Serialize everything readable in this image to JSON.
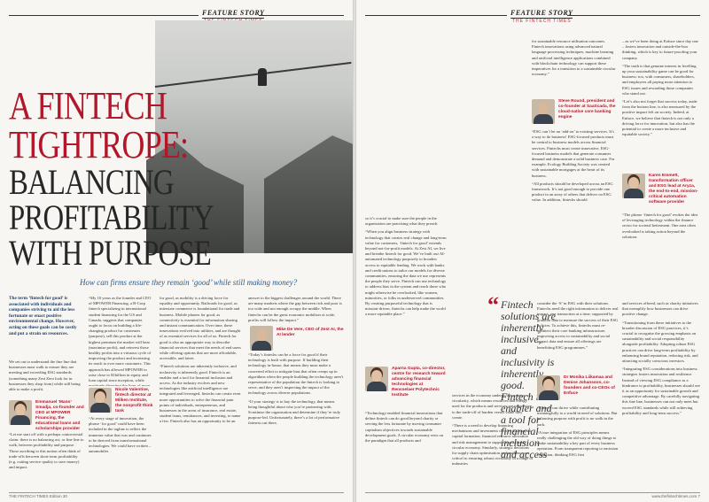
{
  "left": {
    "tab": {
      "label": "FEATURE STORY",
      "sub": "THE FINTECH TIMES"
    },
    "headline": [
      "A FINTECH",
      "TIGHTROPE:",
      "BALANCING",
      "PROFITABILITY",
      "WITH PURPOSE"
    ],
    "standfirst": "How can firms ensure they remain ‘good’ while still making money?",
    "intro": "The term ‘fintech for good’ is associated with individuals and companies striving to aid the less fortunate or enact positive environmental change. However, acting on these goals can be costly and put a strain on resources.",
    "col1": [
      "We set out to understand the fine line that businesses must walk to ensure they are meeting and exceeding ESG standards (something many Zest Zero look for in businesses they shop from) while still being able to make a profit."
    ],
    "spk1": "Emmanuel ‘Mano’ Smadja, co-founder and CEO at MPOWER Financing, the educational loans and scholarships provider",
    "col1b": [
      "“Let me start off with a perhaps controversial claim: there is no balancing act, or fine line to walk, between profitability and purpose. Those ascribing to this notion often think of trade-offs between short-term profitability (e.g. cutting service quality to save money) and impact."
    ],
    "col2": [
      "“My 10 years as the founder and CEO of MPOWER Financing, a B-Corp fintech specializing in international student financing for the US and Canada, suggests that companies ought to focus on building a life-changing product for customers (purpose), sell this product at the highest premium the market will bear (maximise profit), and reinvest those healthy profits into a virtuous cycle of improving the product and increasing its reach to ever more customers. This approach has allowed MPOWER to raise close to $1billion in equity and loan capital since inception, while positively distorting the lives of more than 10,000 students this year alone.”"
    ],
    "spk2": "Nicole Valentine, fintech director at Milken Institute, the nonprofit think tank",
    "col2b": [
      "“At every stage of innovation, the phrase ‘for good’ could have been included in the tagline to reflect the immense value that was and continues to be derived from transformational technologies. We could have written – automobiles"
    ],
    "col3": [
      "for good, as mobility is a driving force for equality and opportunity. Railroads for good, as interstate commerce is foundational for trade and business. Mobile phones for good, as connectivity is essential for information sharing and instant communication. Over time, these innovations evolved into utilities, and are thought of as essential services for all of us. Fintech for good is also an appropriate way to describe financial services that meet the needs of end users while offering options that are more affordable, accessible, and fairer.",
      "“Fintech solutions are inherently inclusive, and inclusivity is inherently good. Fintech is an enabler and a tool for financial inclusion and access. As the industry evolves and new technologies like artificial intelligence are integrated and leveraged, fintechs can create even more opportunities to solve the financial pain points of individuals, entrepreneurs, and businesses in the areas of insurance, real estate, student loans, remittances, and investing, to name a few. Fintech also has an opportunity to be an"
    ],
    "col4": [
      "answer to the biggest challenges around the world. There are many markets where the gap between rich and poor is too wide and not enough occupy the middle. When fintechs can be the great economic mobiliser at scale, profits will follow the impact.”"
    ],
    "spk3": "Mike De Vere, CEO of Zest AI, the AI lender",
    "col4b": [
      "“Today’s fintechs can be a force for good if their technology is built with purpose. If building their technology in-house, that means they must make a concerted effort to mitigate bias that often creeps up in algorithms when the people building the technology aren’t representative of the population the fintech is looking to serve, and they aren’t inspecting the impact of the technology across diverse populations.",
      "“If your strategy is to buy the technology, that means being thoughtful about who you’re partnering with. Scrutinise the organisation and determine if they’re truly purpose-led. Unfortunately, there’s a lot of performative fairness out there,"
    ],
    "footer": "THE FINTECH TIMES    Edition 30"
  },
  "right": {
    "tab": {
      "label": "FEATURE STORY",
      "sub": "THE FINTECH TIMES"
    },
    "col1": [
      "so it’s crucial to make sure the people in the organisation are practising what they preach.",
      "“When you align business strategy with technology that creates real change and long-term value for customers, ‘fintech for good’ extends beyond not-for-profit models. At Zest AI, we live and breathe fintech for good. We’ve built our AI-automated technology purposely to broaden access to equitable lending. We work with banks and credit unions to tailor our models for diverse communities, ensuring the data we use represents the people they serve. Fintech can use technology to address bias in the system and reach those who might otherwise be overlooked, like women, minorities, or folks in underserved communities. By creating purposeful technology that is mission-driven, fintechs can help make the world a more equitable place.”"
    ],
    "spk1": "Aparna Gupta, co-director, centre for research toward advancing financial technologies at Rensselaer Polytechnic Institute",
    "col1b": [
      "“Technology-enabled financial innovations that define fintech can do good beyond charity or serving the less fortunate by moving consumer capitalism objectives towards sustainable development goals. A circular economy rests on the paradigm that all products and"
    ],
    "pull": "Fintech solutions are inherently inclusive, and inclusivity is inherently good. Fintech is an enabler and a tool for financial inclusion and access",
    "col2": [
      "services in the economy undergo the scrutiny of circularity, which means resources and energy used for the products and services are responsive to the trade-off of burden versus value they create.",
      "“There is a need to develop financing mechanisms and investment choices that support capital formation, financial resource allocation and risk management to support a sustainable circular economy. Similarly, strategic decisions for supply chain optimisation and resilience are critical to ensuring robust circularity in a range of industries"
    ],
    "col2top": [
      "for sustainable resource utilisation outcomes. Fintech innovations using advanced natural language processing techniques, machine learning and artificial intelligence applications combined with blockchain technology can support these imperatives for a transition to a sustainable circular economy.”"
    ],
    "spk2": "Steve Round, president and co-founder at SaaScada, the cloud-native core banking engine",
    "col2mid": [
      "“ESG can’t be an ‘add-on’ to existing services. It’s a way to do business! ESG-focused products must be central to business models across financial services. Fintechs must create innovative, ESG-focused business models that generate consumer demand and demonstrate a solid business case. For example, Ecology Building Society was created with sustainable mortgages at the heart of its business.",
      "“All products should be developed across an ESG framework. It’s not good enough to provide one product in an array of others that deliver on ESG value. In addition, fintechs should"
    ],
    "col3": [
      "– as we’ve been doing at Enfuce since day one – fosters innovation and outside-the-box thinking, which is key to future-proofing your company.",
      "“The truth is that genuine interest in levelling up your sustainability game can be good for business: too, with consumers, shareholders, and employees all paying more attention to ESG issues and rewarding those companies who stand out.",
      "“Let’s also not forget that success today, aside from the bottom line, is also measured by the positive impact left on society. Indeed, at Enfuce, we believe that fintech is not only a driving force for innovation, but also has the potential to create a more inclusive and equitable society.”"
    ],
    "spk3": "Karen Emmett, transformation officer and ESG lead at Aryza, the end-to-end, mission-critical automation software provider",
    "col3b": [
      "“The phrase ‘fintech for good’ evokes the idea of leveraging technology within the finance sector for societal betterment. One area often overlooked is taking action beyond the solutions"
    ],
    "col2c": [
      "consider the ‘S’ in ESG with their solutions. Fintechs need the right information to deliver real impact, one transaction at a time, supported by granular data to measure the success of their ESG policies. To achieve this, fintechs must re-architect their core banking infrastructure, improving access to sustainability and social impact data and ensure all offerings are benefitting ESG programmes.”"
    ],
    "spk4": "Dr Monika Liikamaa and Denise Johansson, co-founders and co-CEOs of Enfuce",
    "col2d": [
      "“Fintech can thrive while contributing meaningfully to a world in need of solutions. But balancing purpose with profit is no walk in the park.",
      "“A true integration of ESG principles means really challenging the old way of doing things to make sustainability a key part of every business operation. From transparent reporting to emission reduction, thinking ESG first"
    ],
    "col3c": [
      "and services offered, such as charity initiatives that exemplify how businesses can drive positive change.",
      "“Transitioning from these initiatives to the broader discussion of ESG practices, it’s crucial to recognise the growing emphasis on sustainability and social responsibility alongside profitability. Adopting robust ESG practices can drive long-term profitability by enhancing brand reputation, reducing risk, and attracting socially conscious investors.",
      "“Integrating ESG considerations into business strategies fosters innovation and resilience. Instead of viewing ESG compliance as a hindrance to profitability, businesses should see it as an opportunity for sustainable growth and competitive advantage. By carefully navigating this fine line, businesses can not only meet but exceed ESG standards while still achieving profitability and long-term success.”"
    ],
    "footer": "www.thefintechtimes.com    7"
  }
}
